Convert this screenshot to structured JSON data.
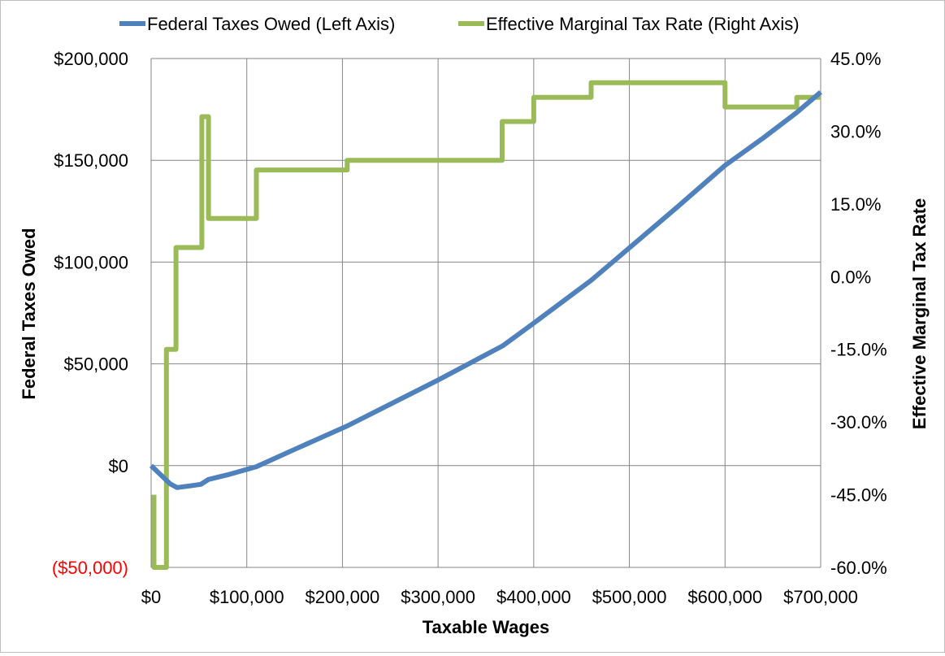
{
  "chart_data": {
    "type": "line",
    "title": "",
    "xlabel": "Taxable Wages",
    "ylabel": "Federal Taxes Owed",
    "y2label": "Effective Marginal Tax Rate",
    "xlim": [
      0,
      700000
    ],
    "ylim": [
      -50000,
      200000
    ],
    "y2lim": [
      -60,
      45
    ],
    "grid": true,
    "legend_position": "top",
    "x_ticks": [
      {
        "value": 0,
        "label": "$0"
      },
      {
        "value": 100000,
        "label": "$100,000"
      },
      {
        "value": 200000,
        "label": "$200,000"
      },
      {
        "value": 300000,
        "label": "$300,000"
      },
      {
        "value": 400000,
        "label": "$400,000"
      },
      {
        "value": 500000,
        "label": "$500,000"
      },
      {
        "value": 600000,
        "label": "$600,000"
      },
      {
        "value": 700000,
        "label": "$700,000"
      }
    ],
    "y_ticks": [
      {
        "value": 200000,
        "label": "$200,000",
        "color": "#000000"
      },
      {
        "value": 150000,
        "label": "$150,000",
        "color": "#000000"
      },
      {
        "value": 100000,
        "label": "$100,000",
        "color": "#000000"
      },
      {
        "value": 50000,
        "label": "$50,000",
        "color": "#000000"
      },
      {
        "value": 0,
        "label": "$0",
        "color": "#000000"
      },
      {
        "value": -50000,
        "label": "($50,000)",
        "color": "#ff0000"
      }
    ],
    "y2_ticks": [
      {
        "value": 45,
        "label": "45.0%"
      },
      {
        "value": 30,
        "label": "30.0%"
      },
      {
        "value": 15,
        "label": "15.0%"
      },
      {
        "value": 0,
        "label": "0.0%"
      },
      {
        "value": -15,
        "label": "-15.0%"
      },
      {
        "value": -30,
        "label": "-30.0%"
      },
      {
        "value": -45,
        "label": "-45.0%"
      },
      {
        "value": -60,
        "label": "-60.0%"
      }
    ],
    "series": [
      {
        "name": "Federal Taxes Owed (Left Axis)",
        "axis": "left",
        "color": "#4f81bd",
        "points": [
          [
            0,
            0
          ],
          [
            20000,
            -9000
          ],
          [
            27000,
            -10800
          ],
          [
            40000,
            -10000
          ],
          [
            52000,
            -9200
          ],
          [
            60000,
            -6800
          ],
          [
            80000,
            -4500
          ],
          [
            110000,
            -500
          ],
          [
            150000,
            8000
          ],
          [
            205000,
            19500
          ],
          [
            300000,
            42000
          ],
          [
            368000,
            59000
          ],
          [
            400000,
            70000
          ],
          [
            460000,
            91000
          ],
          [
            500000,
            107000
          ],
          [
            550000,
            127000
          ],
          [
            600000,
            147500
          ],
          [
            640000,
            161000
          ],
          [
            675000,
            173500
          ],
          [
            700000,
            183500
          ]
        ]
      },
      {
        "name": "Effective Marginal Tax Rate (Right Axis)",
        "axis": "right",
        "color": "#9bbb59",
        "points": [
          [
            3000,
            -45
          ],
          [
            3000,
            -60
          ],
          [
            16000,
            -60
          ],
          [
            16000,
            -15
          ],
          [
            26000,
            -15
          ],
          [
            26000,
            6
          ],
          [
            53000,
            6
          ],
          [
            53000,
            33
          ],
          [
            60000,
            33
          ],
          [
            60000,
            12
          ],
          [
            110000,
            12
          ],
          [
            110000,
            22
          ],
          [
            205000,
            22
          ],
          [
            205000,
            24
          ],
          [
            367000,
            24
          ],
          [
            367000,
            32
          ],
          [
            400000,
            32
          ],
          [
            400000,
            37
          ],
          [
            460000,
            37
          ],
          [
            460000,
            40
          ],
          [
            600000,
            40
          ],
          [
            600000,
            35
          ],
          [
            675000,
            35
          ],
          [
            675000,
            37
          ],
          [
            700000,
            37
          ]
        ]
      }
    ]
  }
}
